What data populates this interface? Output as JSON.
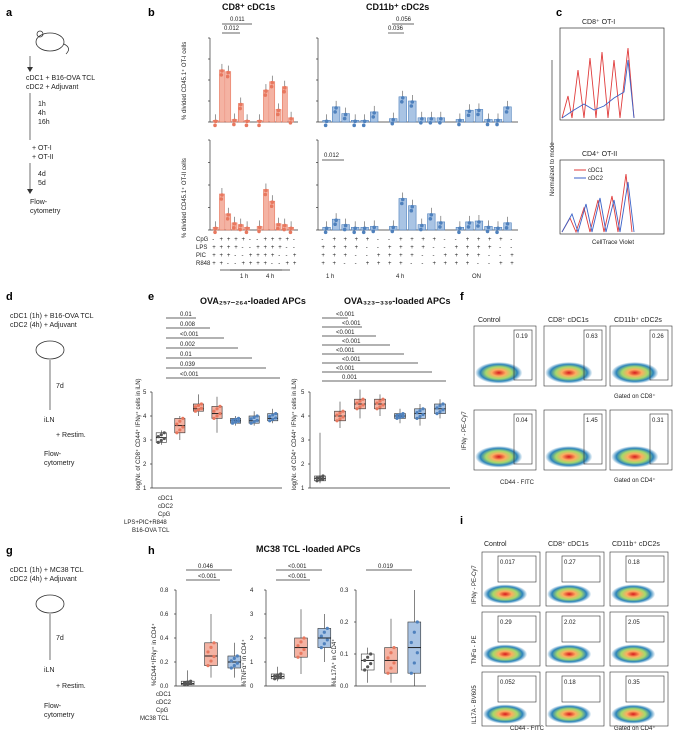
{
  "panel_labels": {
    "a": "a",
    "b": "b",
    "c": "c",
    "d": "d",
    "e": "e",
    "f": "f",
    "g": "g",
    "h": "h",
    "i": "i"
  },
  "colors": {
    "cdc1": "#e8785f",
    "cdc1_fill": "#f4b3a3",
    "cdc2": "#4f81bd",
    "cdc2_fill": "#a9c4e4",
    "control": "#555555"
  },
  "panel_a": {
    "steps": [
      "cDC1 + B16-OVA TCL",
      "cDC2 + Adjuvant",
      "1h",
      "4h",
      "16h",
      "+ OT-I",
      "+ OT-II",
      "4d",
      "5d",
      "Flow-",
      "cytometry"
    ]
  },
  "panel_b": {
    "title_left": "CD8⁺ cDC1s",
    "title_right": "CD11b⁺ cDC2s",
    "ylabel_top": "% divided CD45.1⁺ OT-I cells",
    "ylabel_bottom": "% divided CD45.1⁺ OT-II cells",
    "row_labels": [
      "CpG",
      "LPS",
      "PIC",
      "R848"
    ],
    "group_labels_left": [
      "1 h",
      "4 h"
    ],
    "group_labels_right": [
      "1 h",
      "4 h",
      "ON"
    ],
    "pvals_cdc1_top": [
      "0.011",
      "0.012"
    ],
    "pvals_cdc2_top": [
      "0.056",
      "0.036"
    ],
    "pvals_cdc2_bottom": [
      "0.012"
    ],
    "conditions": [
      "-",
      "+",
      "+",
      "+",
      "+",
      "-"
    ]
  },
  "panel_c": {
    "title_top": "CD8⁺ OT-I",
    "title_bottom": "CD4⁺ OT-II",
    "ylabel": "Normalized to mode",
    "xlabel": "CellTrace Violet",
    "legend": [
      "cDC1",
      "cDC2"
    ]
  },
  "panel_d": {
    "steps": [
      "cDC1 (1h) + B16-OVA TCL",
      "cDC2 (4h) + Adjuvant",
      "7d",
      "iLN",
      "+ Restim.",
      "Flow-",
      "cytometry"
    ]
  },
  "panel_e": {
    "title_left": "OVA₂₅₇₋₂₆₄-loaded APCs",
    "title_right": "OVA₃₂₃₋₃₃₉-loaded APCs",
    "ylabel_left": "log(Nr. of CD8⁺ CD44⁺ IFNγ⁺ cells in iLN)",
    "ylabel_right": "log(Nr. of CD4⁺ CD44⁺ IFNγ⁺ cells in iLN)",
    "row_labels": [
      "cDC1",
      "cDC2",
      "CpG",
      "LPS+PIC+R848",
      "B16-OVA TCL"
    ],
    "pvals_left": [
      "0.01",
      "0.008",
      "<0.001",
      "0.002",
      "0.01",
      "0.039",
      "<0.001"
    ],
    "pvals_right": [
      "<0.001",
      "<0.001",
      "<0.001",
      "<0.001",
      "<0.001",
      "<0.001",
      "<0.001",
      "0.001"
    ],
    "y_ticks": [
      "1",
      "2",
      "3",
      "4",
      "5"
    ]
  },
  "panel_f": {
    "col_titles": [
      "Control",
      "CD8⁺ cDC1s",
      "CD11b⁺ cDC2s"
    ],
    "row1_values": [
      "0.19",
      "0.63",
      "0.26"
    ],
    "row2_values": [
      "0.04",
      "1.45",
      "0.31"
    ],
    "gate_row1": "Gated on CD8⁺",
    "gate_row2": "Gated on CD4⁺",
    "ylabel": "IFNγ - PE-Cy7",
    "xlabel": "CD44 - FITC"
  },
  "panel_g": {
    "steps": [
      "cDC1 (1h) + MC38 TCL",
      "cDC2 (4h) + Adjuvant",
      "7d",
      "iLN",
      "+ Restim.",
      "Flow-",
      "cytometry"
    ]
  },
  "panel_h": {
    "title": "MC38 TCL -loaded APCs",
    "ylabels": [
      "%CD44⁺IFNγ⁺ in CD4⁺",
      "%TNFα⁺ in CD4⁺",
      "%IL17A⁺ in CD4⁺"
    ],
    "pvals_1": [
      "0.046",
      "<0.001"
    ],
    "pvals_2": [
      "<0.001",
      "<0.001"
    ],
    "pvals_3": [
      "0.019"
    ],
    "row_labels": [
      "cDC1",
      "cDC2",
      "CpG",
      "MC38 TCL"
    ],
    "yticks_1": [
      "0.0",
      "0.2",
      "0.4",
      "0.6",
      "0.8"
    ],
    "yticks_2": [
      "0",
      "1",
      "2",
      "3",
      "4"
    ],
    "yticks_3": [
      "0.0",
      "0.1",
      "0.2",
      "0.3"
    ]
  },
  "panel_i": {
    "col_titles": [
      "Control",
      "CD8⁺ cDC1s",
      "CD11b⁺ cDC2s"
    ],
    "row_values": [
      [
        "0.017",
        "0.27",
        "0.18"
      ],
      [
        "0.29",
        "2.02",
        "2.05"
      ],
      [
        "0.052",
        "0.18",
        "0.35"
      ]
    ],
    "row_ylabels": [
      "IFNγ - PE-Cy7",
      "TNFα - PE",
      "IL17A - BV605"
    ],
    "xlabel": "CD44 - FITC",
    "gate": "Gated on CD4⁺"
  },
  "chart_data": [
    {
      "type": "bar",
      "id": "b-cdc1-top",
      "title": "CD8⁺ cDC1s",
      "ylabel": "% divided CD45.1⁺ OT-I cells",
      "ylim": [
        0,
        100
      ],
      "categories": [
        "1h-0",
        "1h-1",
        "1h-2",
        "1h-3",
        "1h-4",
        "1h-5",
        "4h-0",
        "4h-1",
        "4h-2",
        "4h-3",
        "4h-4",
        "4h-5"
      ],
      "values": [
        2,
        62,
        60,
        3,
        22,
        2,
        2,
        38,
        48,
        15,
        42,
        5
      ]
    },
    {
      "type": "bar",
      "id": "b-cdc2-top",
      "title": "CD11b⁺ cDC2s",
      "ylabel": "% divided CD45.1⁺ OT-I cells",
      "ylim": [
        0,
        100
      ],
      "categories": [
        "1h-0",
        "1h-1",
        "1h-2",
        "1h-3",
        "1h-4",
        "1h-5",
        "4h-0",
        "4h-1",
        "4h-2",
        "4h-3",
        "4h-4",
        "4h-5",
        "ON-0",
        "ON-1",
        "ON-2",
        "ON-3",
        "ON-4",
        "ON-5"
      ],
      "values": [
        2,
        18,
        10,
        2,
        2,
        12,
        4,
        30,
        25,
        5,
        5,
        5,
        3,
        14,
        15,
        3,
        3,
        18
      ]
    },
    {
      "type": "bar",
      "id": "b-cdc1-bottom",
      "title": "CD8⁺ cDC1s",
      "ylabel": "% divided CD45.1⁺ OT-II cells",
      "ylim": [
        0,
        10
      ],
      "categories": [
        "1h-0",
        "1h-1",
        "1h-2",
        "1h-3",
        "1h-4",
        "1h-5",
        "4h-0",
        "4h-1",
        "4h-2",
        "4h-3",
        "4h-4",
        "4h-5"
      ],
      "values": [
        0.3,
        4.0,
        1.8,
        0.8,
        0.6,
        0.3,
        0.4,
        4.5,
        3.2,
        0.7,
        0.6,
        0.3
      ]
    },
    {
      "type": "bar",
      "id": "b-cdc2-bottom",
      "title": "CD11b⁺ cDC2s",
      "ylabel": "% divided CD45.1⁺ OT-II cells",
      "ylim": [
        0,
        10
      ],
      "categories": [
        "1h-0",
        "1h-1",
        "1h-2",
        "1h-3",
        "1h-4",
        "1h-5",
        "4h-0",
        "4h-1",
        "4h-2",
        "4h-3",
        "4h-4",
        "4h-5",
        "ON-0",
        "ON-1",
        "ON-2",
        "ON-3",
        "ON-4",
        "ON-5"
      ],
      "values": [
        0.3,
        1.2,
        0.6,
        0.3,
        0.3,
        0.4,
        0.4,
        3.5,
        2.7,
        0.6,
        1.8,
        0.9,
        0.3,
        0.9,
        1.0,
        0.4,
        0.3,
        0.8
      ]
    },
    {
      "type": "box",
      "id": "e-left",
      "title": "OVA₂₅₇₋₂₆₄-loaded APCs",
      "ylabel": "log(Nr. of CD8⁺ CD44⁺ IFNγ⁺ cells in iLN)",
      "ylim": [
        1,
        5
      ],
      "groups": [
        {
          "color": "black",
          "q1": 2.9,
          "median": 3.1,
          "q3": 3.3,
          "min": 2.8,
          "max": 3.4
        },
        {
          "color": "red",
          "q1": 3.3,
          "median": 3.6,
          "q3": 3.9,
          "min": 3.0,
          "max": 4.0
        },
        {
          "color": "red",
          "q1": 4.2,
          "median": 4.3,
          "q3": 4.5,
          "min": 4.0,
          "max": 4.9
        },
        {
          "color": "red",
          "q1": 3.9,
          "median": 4.1,
          "q3": 4.4,
          "min": 3.3,
          "max": 4.8
        },
        {
          "color": "blue",
          "q1": 3.7,
          "median": 3.8,
          "q3": 3.9,
          "min": 3.6,
          "max": 4.0
        },
        {
          "color": "blue",
          "q1": 3.7,
          "median": 3.8,
          "q3": 4.0,
          "min": 3.6,
          "max": 4.2
        },
        {
          "color": "blue",
          "q1": 3.8,
          "median": 3.9,
          "q3": 4.1,
          "min": 3.7,
          "max": 4.3
        }
      ]
    },
    {
      "type": "box",
      "id": "e-right",
      "title": "OVA₃₂₃₋₃₃₉-loaded APCs",
      "ylabel": "log(Nr. of CD4⁺ CD44⁺ IFNγ⁺ cells in iLN)",
      "ylim": [
        1,
        5
      ],
      "groups": [
        {
          "color": "black",
          "q1": 1.3,
          "median": 1.4,
          "q3": 1.5,
          "min": 1.2,
          "max": 3.3
        },
        {
          "color": "red",
          "q1": 3.8,
          "median": 4.0,
          "q3": 4.2,
          "min": 3.5,
          "max": 4.6
        },
        {
          "color": "red",
          "q1": 4.3,
          "median": 4.5,
          "q3": 4.7,
          "min": 3.9,
          "max": 5.1
        },
        {
          "color": "red",
          "q1": 4.3,
          "median": 4.5,
          "q3": 4.7,
          "min": 4.0,
          "max": 4.9
        },
        {
          "color": "blue",
          "q1": 3.9,
          "median": 4.0,
          "q3": 4.1,
          "min": 3.7,
          "max": 4.3
        },
        {
          "color": "blue",
          "q1": 3.9,
          "median": 4.1,
          "q3": 4.3,
          "min": 3.6,
          "max": 4.5
        },
        {
          "color": "blue",
          "q1": 4.1,
          "median": 4.3,
          "q3": 4.5,
          "min": 3.9,
          "max": 4.7
        }
      ]
    },
    {
      "type": "box",
      "id": "h-1",
      "ylabel": "%CD44⁺IFNγ⁺ in CD4⁺",
      "ylim": [
        0,
        0.8
      ],
      "groups": [
        {
          "color": "black",
          "q1": 0.01,
          "median": 0.02,
          "q3": 0.04,
          "min": 0.0,
          "max": 0.13
        },
        {
          "color": "red",
          "q1": 0.17,
          "median": 0.25,
          "q3": 0.36,
          "min": 0.07,
          "max": 0.6
        },
        {
          "color": "blue",
          "q1": 0.15,
          "median": 0.2,
          "q3": 0.25,
          "min": 0.07,
          "max": 0.36
        }
      ]
    },
    {
      "type": "box",
      "id": "h-2",
      "ylabel": "%TNFα⁺ in CD4⁺",
      "ylim": [
        0,
        4
      ],
      "groups": [
        {
          "color": "black",
          "q1": 0.3,
          "median": 0.4,
          "q3": 0.5,
          "min": 0.2,
          "max": 0.8
        },
        {
          "color": "red",
          "q1": 1.2,
          "median": 1.6,
          "q3": 2.0,
          "min": 0.5,
          "max": 3.2
        },
        {
          "color": "blue",
          "q1": 1.6,
          "median": 2.0,
          "q3": 2.4,
          "min": 1.0,
          "max": 3.0
        }
      ]
    },
    {
      "type": "box",
      "id": "h-3",
      "ylabel": "%IL17A⁺ in CD4⁺",
      "ylim": [
        0,
        0.3
      ],
      "groups": [
        {
          "color": "black",
          "q1": 0.05,
          "median": 0.08,
          "q3": 0.1,
          "min": 0.01,
          "max": 0.12
        },
        {
          "color": "red",
          "q1": 0.04,
          "median": 0.08,
          "q3": 0.12,
          "min": 0.01,
          "max": 0.21
        },
        {
          "color": "blue",
          "q1": 0.04,
          "median": 0.12,
          "q3": 0.2,
          "min": 0.0,
          "max": 0.3
        }
      ]
    }
  ]
}
